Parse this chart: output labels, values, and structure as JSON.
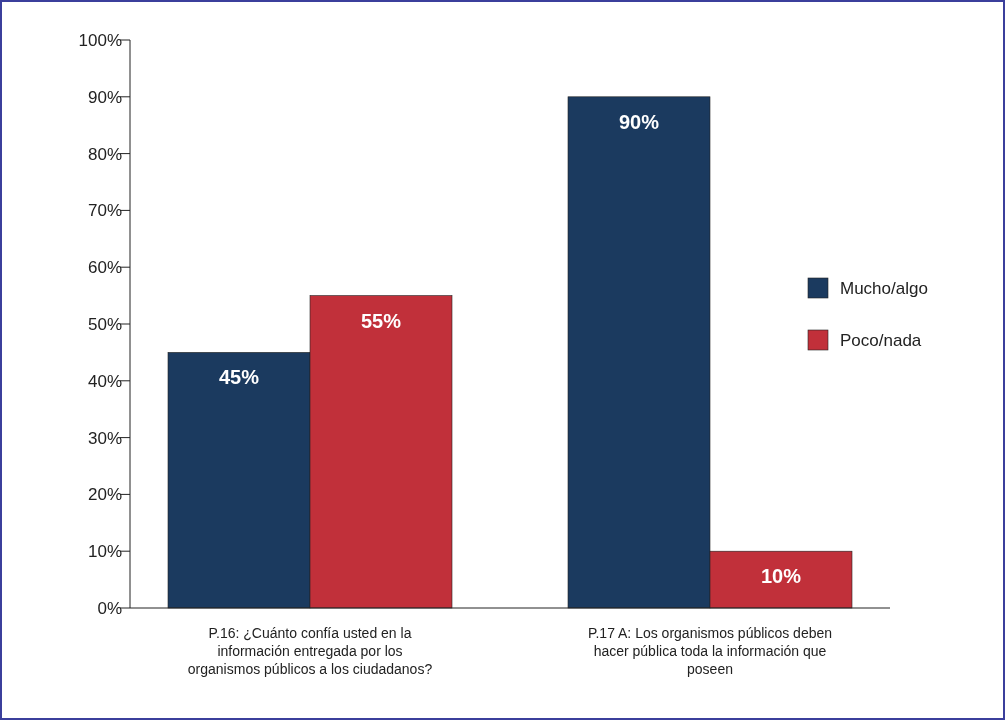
{
  "chart_data": {
    "type": "bar",
    "categories": [
      "P.16: ¿Cuánto confía usted en la información entregada por los organismos públicos a los ciudadanos?",
      "P.17 A: Los organismos públicos deben hacer pública toda la información que poseen"
    ],
    "series": [
      {
        "name": "Mucho/algo",
        "color": "#1b3a5f",
        "values": [
          45,
          90
        ],
        "value_labels": [
          "45%",
          "90%"
        ]
      },
      {
        "name": "Poco/nada",
        "color": "#c1303a",
        "values": [
          55,
          10
        ],
        "value_labels": [
          "55%",
          "10%"
        ]
      }
    ],
    "ylim": [
      0,
      100
    ],
    "yticks": [
      {
        "value": 0,
        "label": "0%"
      },
      {
        "value": 10,
        "label": "10%"
      },
      {
        "value": 20,
        "label": "20%"
      },
      {
        "value": 30,
        "label": "30%"
      },
      {
        "value": 40,
        "label": "40%"
      },
      {
        "value": 50,
        "label": "50%"
      },
      {
        "value": 60,
        "label": "60%"
      },
      {
        "value": 70,
        "label": "70%"
      },
      {
        "value": 80,
        "label": "80%"
      },
      {
        "value": 90,
        "label": "90%"
      },
      {
        "value": 100,
        "label": "100%"
      }
    ],
    "legend": "right"
  }
}
